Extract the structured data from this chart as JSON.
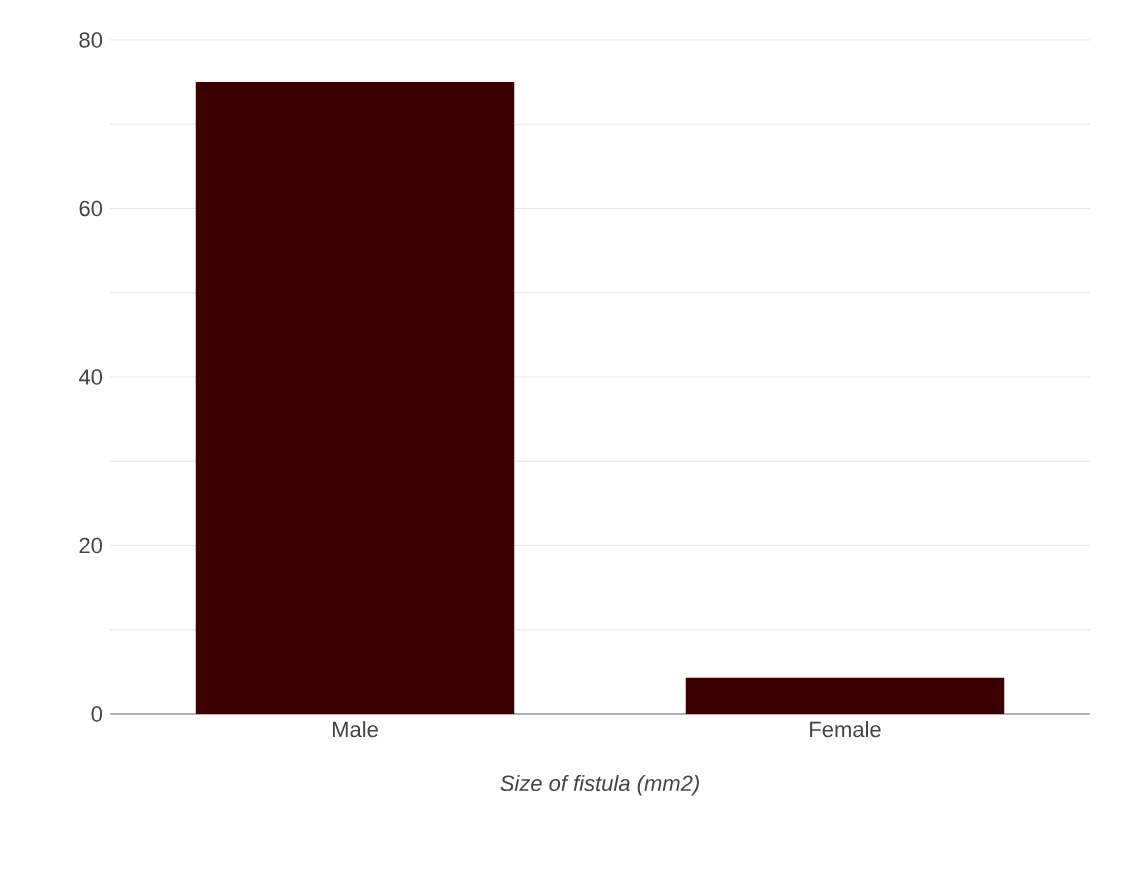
{
  "chart_data": {
    "type": "bar",
    "categories": [
      "Male",
      "Female"
    ],
    "values": [
      75,
      4.3
    ],
    "color": "#3d0000",
    "xlabel": "Size of fistula (mm2)",
    "ylim": [
      0,
      80
    ],
    "yticks": [
      0,
      {
        "value": 10,
        "label": null
      },
      20,
      {
        "value": 30,
        "label": null
      },
      40,
      {
        "value": 50,
        "label": null
      },
      60,
      {
        "value": 70,
        "label": null
      },
      80
    ],
    "grid": "y"
  }
}
